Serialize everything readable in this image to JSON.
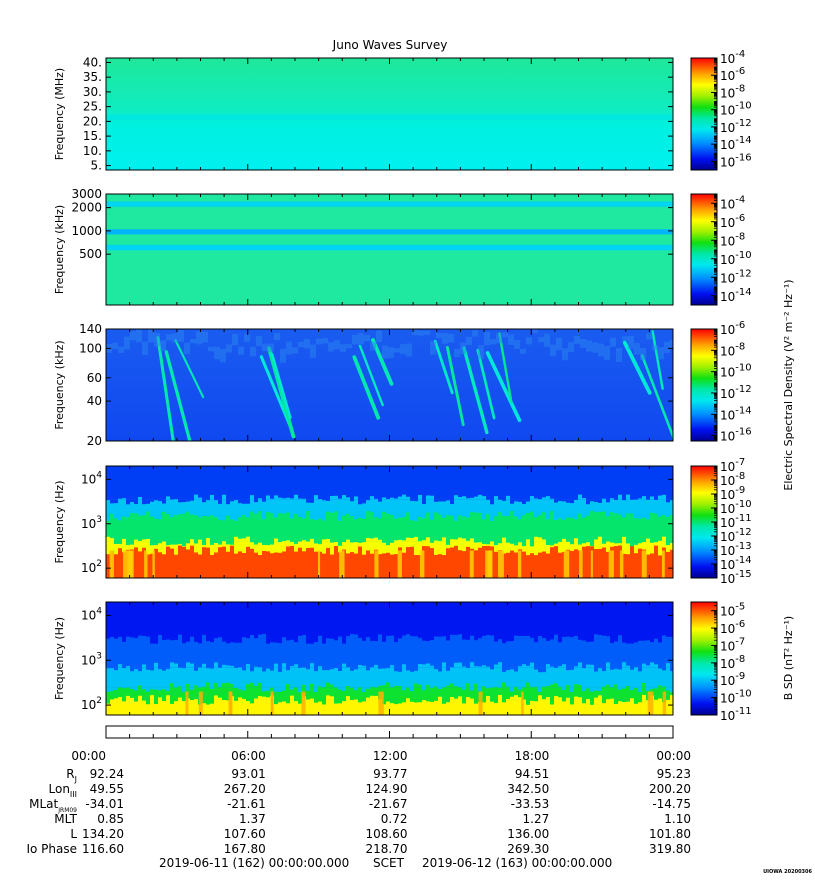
{
  "title": "Juno Waves Survey",
  "watermark": "UIOWA 20200306",
  "colors": {
    "background_uniform": "#1fe8a0",
    "band": "#22dd55",
    "cyan": "#00f0ea",
    "blue": "#1250f0",
    "red": "#ff1010"
  },
  "chart_data": [
    {
      "type": "heatmap",
      "name": "panel-hfr-high",
      "ylabel": "Frequency (MHz)",
      "yscale": "linear",
      "ylim": [
        3.5,
        41.5
      ],
      "yticks": [
        {
          "value": 5,
          "label": "5."
        },
        {
          "value": 10,
          "label": "10."
        },
        {
          "value": 15,
          "label": "15."
        },
        {
          "value": 20,
          "label": "20."
        },
        {
          "value": 25,
          "label": "25."
        },
        {
          "value": 30,
          "label": "30."
        },
        {
          "value": 35,
          "label": "35."
        },
        {
          "value": 40,
          "label": "40."
        }
      ],
      "colorbar": {
        "label": "",
        "log_min": -17,
        "log_max": -4,
        "ticks": [
          {
            "value": -4,
            "label": "10",
            "sup": "-4"
          },
          {
            "value": -6,
            "label": "10",
            "sup": "-6"
          },
          {
            "value": -8,
            "label": "10",
            "sup": "-8"
          },
          {
            "value": -10,
            "label": "10",
            "sup": "-10"
          },
          {
            "value": -12,
            "label": "10",
            "sup": "-12"
          },
          {
            "value": -14,
            "label": "10",
            "sup": "-14"
          },
          {
            "value": -16,
            "label": "10",
            "sup": "-16"
          }
        ]
      },
      "features": [
        {
          "kind": "band",
          "from": 20.5,
          "to": 22.3,
          "level": -12
        }
      ]
    },
    {
      "type": "heatmap",
      "name": "panel-hfr-low",
      "ylabel": "Frequency (kHz)",
      "yscale": "log",
      "ylim": [
        110,
        3000
      ],
      "yticks": [
        {
          "value": 500,
          "label": "500"
        },
        {
          "value": 1000,
          "label": "1000"
        },
        {
          "value": 2000,
          "label": "2000"
        },
        {
          "value": 3000,
          "label": "3000"
        }
      ],
      "colorbar": {
        "label": "",
        "log_min": -15,
        "log_max": -3,
        "ticks": [
          {
            "value": -4,
            "label": "10",
            "sup": "-4"
          },
          {
            "value": -6,
            "label": "10",
            "sup": "-6"
          },
          {
            "value": -8,
            "label": "10",
            "sup": "-8"
          },
          {
            "value": -10,
            "label": "10",
            "sup": "-10"
          },
          {
            "value": -12,
            "label": "10",
            "sup": "-12"
          },
          {
            "value": -14,
            "label": "10",
            "sup": "-14"
          }
        ]
      },
      "features": [
        {
          "kind": "band",
          "from": 2050,
          "to": 2400,
          "level": -11
        },
        {
          "kind": "band",
          "from": 560,
          "to": 660,
          "level": -11
        },
        {
          "kind": "band",
          "from": 900,
          "to": 1050,
          "level": -11.5
        }
      ]
    },
    {
      "type": "heatmap",
      "name": "panel-lfr-high",
      "ylabel": "Frequency (kHz)",
      "yscale": "log",
      "ylim": [
        20,
        140
      ],
      "yticks": [
        {
          "value": 20,
          "label": "20"
        },
        {
          "value": 40,
          "label": "40"
        },
        {
          "value": 60,
          "label": "60"
        },
        {
          "value": 100,
          "label": "100"
        },
        {
          "value": 140,
          "label": "140"
        }
      ],
      "colorbar": {
        "label": "Electric Spectral Density (V² m⁻² Hz⁻¹)",
        "log_min": -16.5,
        "log_max": -6,
        "ticks": [
          {
            "value": -6,
            "label": "10",
            "sup": "-6"
          },
          {
            "value": -8,
            "label": "10",
            "sup": "-8"
          },
          {
            "value": -10,
            "label": "10",
            "sup": "-10"
          },
          {
            "value": -12,
            "label": "10",
            "sup": "-12"
          },
          {
            "value": -14,
            "label": "10",
            "sup": "-14"
          },
          {
            "value": -16,
            "label": "10",
            "sup": "-16"
          }
        ]
      },
      "features": [
        {
          "kind": "streak",
          "from_hour": 2.2,
          "to_hour": 3.0,
          "level": -12.5
        },
        {
          "kind": "streak",
          "from_hour": 6.4,
          "to_hour": 7.2,
          "level": -12.5
        },
        {
          "kind": "streak",
          "from_hour": 10.4,
          "to_hour": 11.4,
          "level": -12.5
        },
        {
          "kind": "streak",
          "from_hour": 13.8,
          "to_hour": 17.2,
          "level": -12.5
        },
        {
          "kind": "streak",
          "from_hour": 21.8,
          "to_hour": 23.8,
          "level": -12.5
        }
      ]
    },
    {
      "type": "heatmap",
      "name": "panel-lfr-low-electric",
      "ylabel": "Frequency (Hz)",
      "yscale": "log",
      "ylim": [
        60,
        20000
      ],
      "yticks": [
        {
          "value": 100,
          "label": "10",
          "sup": "2"
        },
        {
          "value": 1000,
          "label": "10",
          "sup": "3"
        },
        {
          "value": 10000,
          "label": "10",
          "sup": "4"
        }
      ],
      "colorbar": {
        "label": "",
        "log_min": -15,
        "log_max": -7,
        "ticks": [
          {
            "value": -7,
            "label": "10",
            "sup": "-7"
          },
          {
            "value": -8,
            "label": "10",
            "sup": "-8"
          },
          {
            "value": -9,
            "label": "10",
            "sup": "-9"
          },
          {
            "value": -10,
            "label": "10",
            "sup": "-10"
          },
          {
            "value": -11,
            "label": "10",
            "sup": "-11"
          },
          {
            "value": -12,
            "label": "10",
            "sup": "-12"
          },
          {
            "value": -13,
            "label": "10",
            "sup": "-13"
          },
          {
            "value": -14,
            "label": "10",
            "sup": "-14"
          },
          {
            "value": -15,
            "label": "10",
            "sup": "-15"
          }
        ]
      },
      "features": [
        {
          "kind": "layer",
          "from": 60,
          "to": 250,
          "level": -7.5
        },
        {
          "kind": "layer",
          "from": 250,
          "to": 400,
          "level": -9
        },
        {
          "kind": "layer",
          "from": 400,
          "to": 1500,
          "level": -11
        },
        {
          "kind": "layer",
          "from": 1500,
          "to": 3500,
          "level": -12.5
        },
        {
          "kind": "layer",
          "from": 3500,
          "to": 20000,
          "level": -13.8
        }
      ]
    },
    {
      "type": "heatmap",
      "name": "panel-lfr-low-magnetic",
      "ylabel": "Frequency (Hz)",
      "yscale": "log",
      "ylim": [
        60,
        20000
      ],
      "yticks": [
        {
          "value": 100,
          "label": "10",
          "sup": "2"
        },
        {
          "value": 1000,
          "label": "10",
          "sup": "3"
        },
        {
          "value": 10000,
          "label": "10",
          "sup": "4"
        }
      ],
      "colorbar": {
        "label": "B SD (nT² Hz⁻¹)",
        "log_min": -11,
        "log_max": -4.5,
        "ticks": [
          {
            "value": -5,
            "label": "10",
            "sup": "-5"
          },
          {
            "value": -6,
            "label": "10",
            "sup": "-6"
          },
          {
            "value": -7,
            "label": "10",
            "sup": "-7"
          },
          {
            "value": -8,
            "label": "10",
            "sup": "-8"
          },
          {
            "value": -9,
            "label": "10",
            "sup": "-9"
          },
          {
            "value": -10,
            "label": "10",
            "sup": "-10"
          },
          {
            "value": -11,
            "label": "10",
            "sup": "-11"
          }
        ]
      },
      "features": [
        {
          "kind": "layer",
          "from": 60,
          "to": 130,
          "level": -6
        },
        {
          "kind": "layer",
          "from": 130,
          "to": 250,
          "level": -7.5
        },
        {
          "kind": "layer",
          "from": 250,
          "to": 700,
          "level": -9
        },
        {
          "kind": "layer",
          "from": 700,
          "to": 3000,
          "level": -9.8
        },
        {
          "kind": "layer",
          "from": 3000,
          "to": 20000,
          "level": -10.3
        }
      ]
    }
  ],
  "time_axis": {
    "labels": [
      "00:00",
      "06:00",
      "12:00",
      "18:00",
      "00:00"
    ]
  },
  "ephemeris": [
    {
      "label": "R",
      "sub": "J",
      "values": [
        "92.24",
        "93.01",
        "93.77",
        "94.51",
        "95.23"
      ]
    },
    {
      "label": "Lon",
      "sub": "III",
      "values": [
        "49.55",
        "267.20",
        "124.90",
        "342.50",
        "200.20"
      ]
    },
    {
      "label": "MLat",
      "sub": "JRM09",
      "values": [
        "-34.01",
        "-21.61",
        "-21.67",
        "-33.53",
        "-14.75"
      ]
    },
    {
      "label": "MLT",
      "sub": "",
      "values": [
        "0.85",
        "1.37",
        "0.72",
        "1.27",
        "1.10"
      ]
    },
    {
      "label": "L",
      "sub": "",
      "values": [
        "134.20",
        "107.60",
        "108.60",
        "136.00",
        "101.80"
      ]
    },
    {
      "label": "Io Phase",
      "sub": "",
      "values": [
        "116.60",
        "167.80",
        "218.70",
        "269.30",
        "319.80"
      ]
    }
  ],
  "footer": {
    "start": "2019-06-11 (162) 00:00:00.000",
    "scet": "SCET",
    "end": "2019-06-12 (163) 00:00:00.000"
  }
}
